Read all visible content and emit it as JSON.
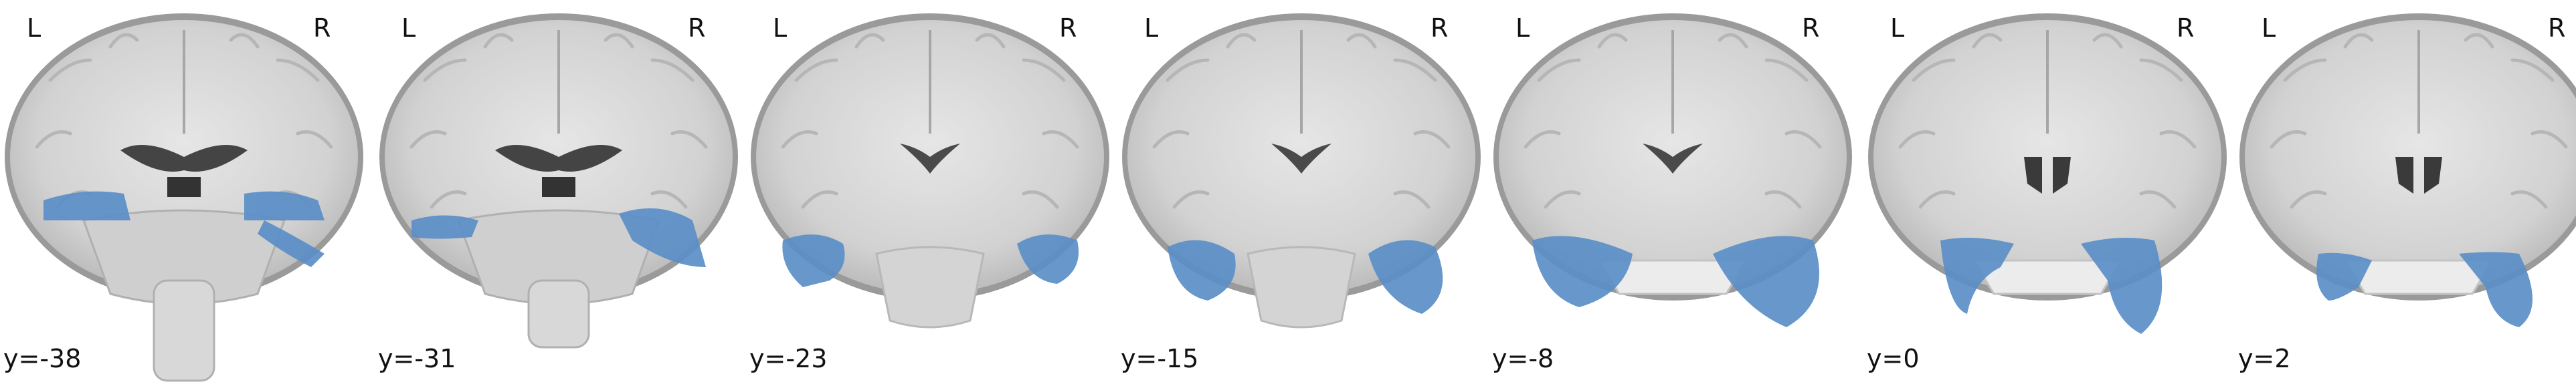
{
  "figure": {
    "side_labels": {
      "left": "L",
      "right": "R"
    },
    "overlay_color": "#5a8ec7",
    "slices": [
      {
        "coord": "y=-38",
        "y": -38
      },
      {
        "coord": "y=-31",
        "y": -31
      },
      {
        "coord": "y=-23",
        "y": -23
      },
      {
        "coord": "y=-15",
        "y": -15
      },
      {
        "coord": "y=-8",
        "y": -8
      },
      {
        "coord": "y=0",
        "y": 0
      },
      {
        "coord": "y=2",
        "y": 2
      }
    ]
  }
}
